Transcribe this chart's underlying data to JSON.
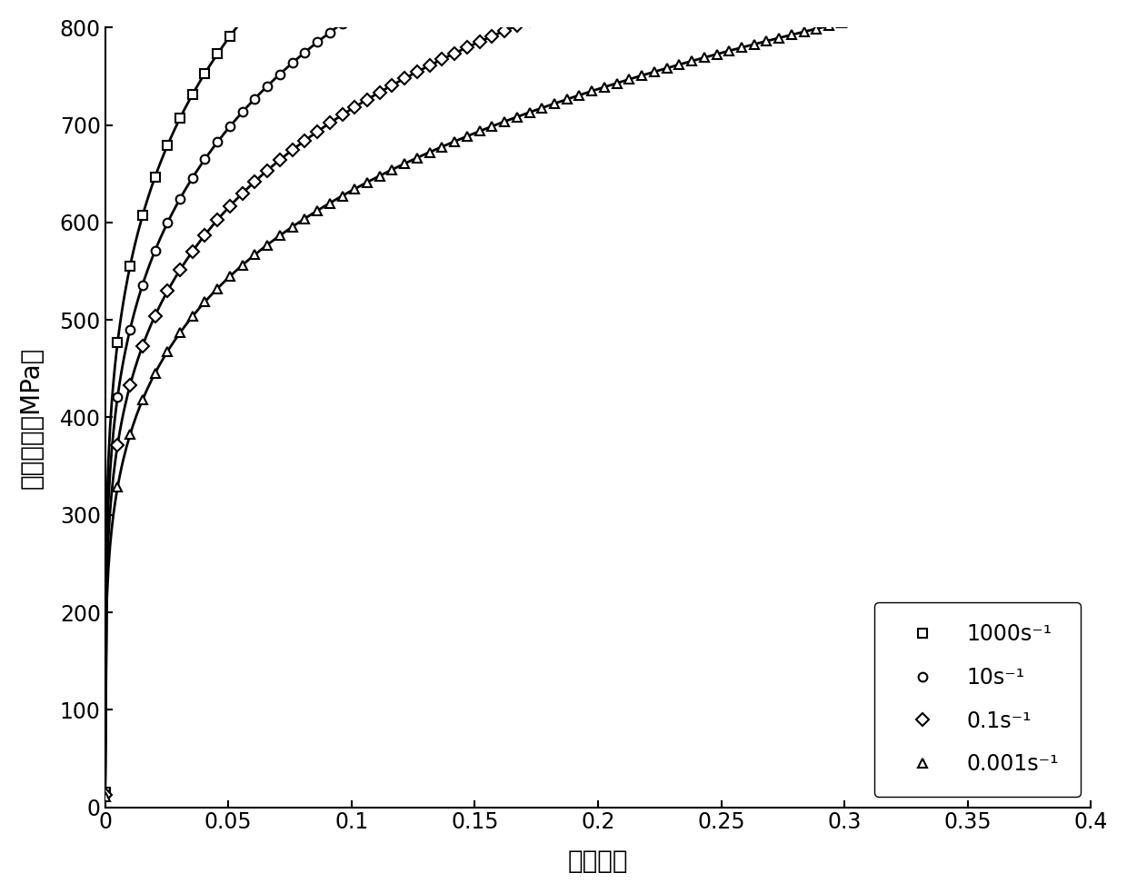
{
  "title": "",
  "xlabel": "真实应变",
  "ylabel": "真实应力（MPa）",
  "xlim": [
    0,
    0.4
  ],
  "ylim": [
    0,
    800
  ],
  "xticks": [
    0,
    0.05,
    0.1,
    0.15,
    0.2,
    0.25,
    0.3,
    0.35,
    0.4
  ],
  "yticks": [
    0,
    100,
    200,
    300,
    400,
    500,
    600,
    700,
    800
  ],
  "series": [
    {
      "label": "1000s⁻¹",
      "marker": "s",
      "edot": 1000
    },
    {
      "label": "10s⁻¹",
      "marker": "o",
      "edot": 10
    },
    {
      "label": "0.1s⁻¹",
      "marker": "D",
      "edot": 0.1
    },
    {
      "label": "0.001s⁻¹",
      "marker": "^",
      "edot": 0.001
    }
  ],
  "model_K": 1050,
  "model_n": 0.22,
  "model_m": 0.027,
  "edot_ref": 0.001,
  "background_color": "#ffffff",
  "font_size_label": 20,
  "font_size_tick": 17,
  "font_size_legend": 17,
  "marker_size": 7,
  "line_width": 2.0,
  "n_markers": 80,
  "n_smooth": 600
}
